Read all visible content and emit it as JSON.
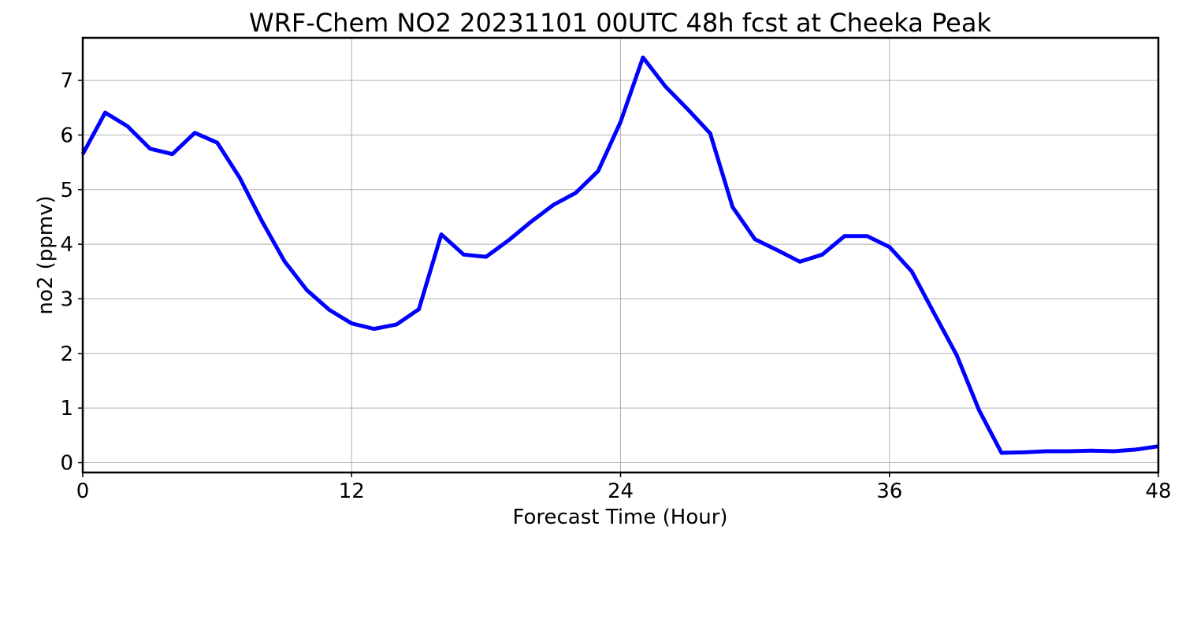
{
  "chart_data": {
    "type": "line",
    "title": "WRF-Chem NO2  20231101 00UTC 48h fcst at Cheeka Peak",
    "xlabel": "Forecast Time (Hour)",
    "ylabel": "no2  (ppmv)",
    "xlim": [
      0,
      48
    ],
    "ylim": [
      -0.18,
      7.78
    ],
    "x_ticks": [
      0,
      12,
      24,
      36,
      48
    ],
    "x_tick_labels": [
      "0",
      "12",
      "24",
      "36",
      "48"
    ],
    "y_ticks": [
      0,
      1,
      2,
      3,
      4,
      5,
      6,
      7
    ],
    "y_tick_labels": [
      "0",
      "1",
      "2",
      "3",
      "4",
      "5",
      "6",
      "7"
    ],
    "grid": true,
    "legend": "none",
    "series": [
      {
        "color": "#0000ff",
        "x": [
          0,
          1,
          2,
          3,
          4,
          5,
          6,
          7,
          8,
          9,
          10,
          11,
          12,
          13,
          14,
          15,
          16,
          17,
          18,
          19,
          20,
          21,
          22,
          23,
          24,
          25,
          26,
          27,
          28,
          29,
          30,
          31,
          32,
          33,
          34,
          35,
          36,
          37,
          38,
          39,
          40,
          41,
          42,
          43,
          44,
          45,
          46,
          47,
          48
        ],
        "values": [
          5.65,
          6.41,
          6.16,
          5.75,
          5.65,
          6.04,
          5.86,
          5.22,
          4.42,
          3.69,
          3.16,
          2.8,
          2.55,
          2.45,
          2.53,
          2.81,
          4.18,
          3.81,
          3.77,
          4.07,
          4.41,
          4.72,
          4.94,
          5.34,
          6.24,
          7.42,
          6.89,
          6.47,
          6.03,
          4.68,
          4.09,
          3.89,
          3.68,
          3.81,
          4.15,
          4.15,
          3.95,
          3.5,
          2.73,
          1.97,
          0.96,
          0.18,
          0.19,
          0.21,
          0.21,
          0.22,
          0.21,
          0.24,
          0.3
        ]
      }
    ]
  }
}
